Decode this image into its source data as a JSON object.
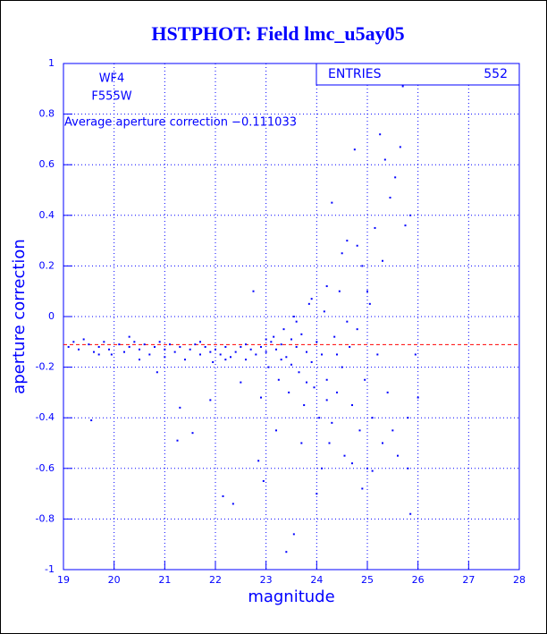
{
  "chart_data": {
    "type": "scatter",
    "title": "HSTPHOT: Field lmc_u5ay05",
    "x_label": "magnitude",
    "y_label": "aperture correction",
    "annotations": [
      "WF4",
      "F555W",
      "Average aperture correction −0.111033"
    ],
    "stats_box": {
      "label": "ENTRIES",
      "value": 552
    },
    "reference_line": {
      "value": -0.111033,
      "color": "#ff0000"
    },
    "color": "#0000ff",
    "grid": true,
    "xlim": [
      19,
      28
    ],
    "xticks": [
      19,
      20,
      21,
      22,
      23,
      24,
      25,
      26,
      27,
      28
    ],
    "ylim": [
      -1,
      1
    ],
    "yticks": [
      -1,
      -0.8,
      -0.6,
      -0.4,
      -0.2,
      0,
      0.2,
      0.4,
      0.6,
      0.8,
      1
    ],
    "x": [
      19.1,
      19.2,
      19.3,
      19.4,
      19.5,
      19.6,
      19.7,
      19.8,
      19.9,
      19.55,
      19.95,
      20.1,
      20.2,
      20.3,
      20.4,
      20.5,
      20.6,
      20.7,
      20.8,
      20.9,
      20.85,
      21.0,
      21.1,
      21.2,
      21.25,
      21.3,
      21.4,
      21.5,
      21.55,
      21.6,
      21.7,
      21.8,
      21.9,
      21.95,
      22.0,
      22.1,
      22.2,
      22.3,
      22.15,
      22.35,
      22.4,
      22.5,
      22.6,
      22.7,
      22.8,
      22.9,
      22.75,
      22.85,
      22.95,
      23.0,
      23.05,
      23.1,
      23.15,
      23.2,
      23.25,
      23.3,
      23.35,
      23.4,
      23.45,
      23.5,
      23.55,
      23.6,
      23.65,
      23.7,
      23.75,
      23.8,
      23.85,
      23.9,
      23.95,
      24.0,
      24.05,
      24.1,
      24.15,
      24.2,
      24.25,
      24.3,
      24.35,
      24.4,
      24.45,
      24.5,
      24.55,
      24.6,
      24.65,
      24.7,
      24.75,
      24.8,
      24.85,
      24.9,
      24.95,
      25.0,
      25.05,
      25.1,
      25.15,
      25.2,
      25.25,
      25.3,
      25.35,
      25.4,
      25.45,
      25.5,
      25.55,
      25.6,
      25.7,
      25.75,
      25.8,
      25.85,
      23.4,
      23.55,
      24.1,
      24.0,
      24.7,
      24.9,
      25.1,
      23.7,
      23.2,
      22.9,
      22.5,
      21.9,
      21.3,
      20.5,
      24.6,
      24.2,
      23.9,
      23.6,
      24.8,
      25.0,
      25.3,
      25.65,
      25.85,
      26.0,
      25.95,
      25.8,
      24.5,
      24.4,
      24.3,
      24.2,
      23.8,
      23.5,
      23.3,
      23.0,
      22.6,
      22.2,
      21.7,
      21.0,
      20.3,
      19.7
    ],
    "values": [
      -0.12,
      -0.1,
      -0.13,
      -0.09,
      -0.11,
      -0.14,
      -0.12,
      -0.1,
      -0.13,
      -0.41,
      -0.15,
      -0.11,
      -0.14,
      -0.12,
      -0.1,
      -0.13,
      -0.11,
      -0.15,
      -0.12,
      -0.1,
      -0.22,
      -0.13,
      -0.11,
      -0.14,
      -0.49,
      -0.12,
      -0.17,
      -0.13,
      -0.46,
      -0.11,
      -0.15,
      -0.12,
      -0.14,
      -0.18,
      -0.13,
      -0.15,
      -0.12,
      -0.16,
      -0.71,
      -0.74,
      -0.14,
      -0.12,
      -0.17,
      -0.13,
      -0.15,
      -0.12,
      0.1,
      -0.57,
      -0.65,
      -0.14,
      -0.2,
      -0.1,
      -0.08,
      -0.13,
      -0.25,
      -0.11,
      -0.05,
      -0.16,
      -0.3,
      -0.09,
      0.0,
      -0.12,
      -0.22,
      -0.07,
      -0.35,
      -0.14,
      0.05,
      -0.18,
      -0.28,
      -0.1,
      -0.4,
      -0.15,
      0.02,
      -0.25,
      -0.5,
      0.45,
      -0.08,
      -0.3,
      0.1,
      -0.2,
      -0.55,
      0.3,
      -0.12,
      -0.35,
      0.66,
      -0.05,
      -0.45,
      0.2,
      -0.25,
      -0.6,
      0.05,
      -0.4,
      0.35,
      -0.15,
      0.72,
      -0.5,
      0.62,
      -0.3,
      0.47,
      -0.45,
      0.55,
      -0.55,
      0.91,
      0.36,
      -0.6,
      -0.78,
      -0.93,
      -0.86,
      -0.6,
      -0.7,
      -0.58,
      -0.68,
      -0.61,
      -0.5,
      -0.45,
      -0.32,
      -0.26,
      -0.33,
      -0.36,
      -0.17,
      -0.02,
      0.12,
      0.07,
      -0.02,
      0.28,
      0.1,
      0.22,
      0.67,
      0.4,
      -0.32,
      -0.15,
      -0.4,
      0.25,
      -0.15,
      -0.42,
      -0.33,
      -0.26,
      -0.19,
      -0.17,
      -0.09,
      -0.11,
      -0.17,
      -0.1,
      -0.16,
      -0.08,
      -0.15
    ]
  }
}
